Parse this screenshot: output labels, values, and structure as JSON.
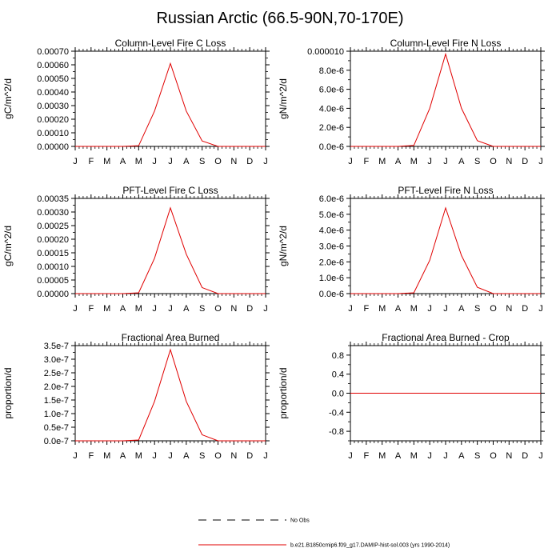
{
  "page": {
    "title": "Russian Arctic (66.5-90N,70-170E)"
  },
  "colors": {
    "model_line": "#e00000",
    "obs_line": "#000000",
    "axis": "#000000"
  },
  "legend": {
    "obs_label": "No Obs",
    "model_label": "b.e21.B1850cmip6.f09_g17.DAMIP-hist-sol.003 (yrs 1990-2014)"
  },
  "chart_data": [
    {
      "type": "line",
      "title": "Column-Level Fire C Loss",
      "ylabel": "gC/m^2/d",
      "x": [
        "J",
        "F",
        "M",
        "A",
        "M",
        "J",
        "J",
        "A",
        "S",
        "O",
        "N",
        "D",
        "J"
      ],
      "ylim": [
        0,
        0.0007
      ],
      "yticks": [
        0,
        0.0001,
        0.0002,
        0.0003,
        0.0004,
        0.0005,
        0.0006,
        0.0007
      ],
      "yticklabels": [
        "0.00000",
        "0.00010",
        "0.00020",
        "0.00030",
        "0.00040",
        "0.00050",
        "0.00060",
        "0.00070"
      ],
      "minor_y": 5e-05,
      "series": [
        {
          "values": [
            0,
            0,
            0,
            0,
            5e-06,
            0.00026,
            0.00061,
            0.00026,
            4e-05,
            0,
            0,
            0,
            0
          ]
        }
      ]
    },
    {
      "type": "line",
      "title": "Column-Level Fire N Loss",
      "ylabel": "gN/m^2/d",
      "x": [
        "J",
        "F",
        "M",
        "A",
        "M",
        "J",
        "J",
        "A",
        "S",
        "O",
        "N",
        "D",
        "J"
      ],
      "ylim": [
        0,
        1e-05
      ],
      "yticks": [
        0,
        2e-06,
        4e-06,
        6e-06,
        8e-06,
        1e-05
      ],
      "yticklabels": [
        "0.0e-6",
        "2.0e-6",
        "4.0e-6",
        "6.0e-6",
        "8.0e-6",
        "0.000010"
      ],
      "minor_y": 1e-06,
      "series": [
        {
          "values": [
            0,
            0,
            0,
            0,
            1e-07,
            4e-06,
            9.7e-06,
            4e-06,
            6e-07,
            0,
            0,
            0,
            0
          ]
        }
      ]
    },
    {
      "type": "line",
      "title": "PFT-Level Fire C Loss",
      "ylabel": "gC/m^2/d",
      "x": [
        "J",
        "F",
        "M",
        "A",
        "M",
        "J",
        "J",
        "A",
        "S",
        "O",
        "N",
        "D",
        "J"
      ],
      "ylim": [
        0,
        0.00035
      ],
      "yticks": [
        0,
        5e-05,
        0.0001,
        0.00015,
        0.0002,
        0.00025,
        0.0003,
        0.00035
      ],
      "yticklabels": [
        "0.00000",
        "0.00005",
        "0.00010",
        "0.00015",
        "0.00020",
        "0.00025",
        "0.00030",
        "0.00035"
      ],
      "minor_y": 2.5e-05,
      "series": [
        {
          "values": [
            0,
            0,
            0,
            0,
            3e-06,
            0.00013,
            0.000315,
            0.000145,
            2.2e-05,
            0,
            0,
            0,
            0
          ]
        }
      ]
    },
    {
      "type": "line",
      "title": "PFT-Level Fire N Loss",
      "ylabel": "gN/m^2/d",
      "x": [
        "J",
        "F",
        "M",
        "A",
        "M",
        "J",
        "J",
        "A",
        "S",
        "O",
        "N",
        "D",
        "J"
      ],
      "ylim": [
        0,
        6e-06
      ],
      "yticks": [
        0,
        1e-06,
        2e-06,
        3e-06,
        4e-06,
        5e-06,
        6e-06
      ],
      "yticklabels": [
        "0.0e-6",
        "1.0e-6",
        "2.0e-6",
        "3.0e-6",
        "4.0e-6",
        "5.0e-6",
        "6.0e-6"
      ],
      "minor_y": 5e-07,
      "series": [
        {
          "values": [
            0,
            0,
            0,
            0,
            5e-08,
            2.1e-06,
            5.4e-06,
            2.4e-06,
            4e-07,
            0,
            0,
            0,
            0
          ]
        }
      ]
    },
    {
      "type": "line",
      "title": "Fractional Area Burned",
      "ylabel": "proportion/d",
      "x": [
        "J",
        "F",
        "M",
        "A",
        "M",
        "J",
        "J",
        "A",
        "S",
        "O",
        "N",
        "D",
        "J"
      ],
      "ylim": [
        0,
        3.5e-07
      ],
      "yticks": [
        0,
        5e-08,
        1e-07,
        1.5e-07,
        2e-07,
        2.5e-07,
        3e-07,
        3.5e-07
      ],
      "yticklabels": [
        "0.0e-7",
        "0.5e-7",
        "1.0e-7",
        "1.5e-7",
        "2.0e-7",
        "2.5e-7",
        "3.0e-7",
        "3.5e-7"
      ],
      "minor_y": 2.5e-08,
      "series": [
        {
          "values": [
            0,
            0,
            0,
            0,
            3e-09,
            1.45e-07,
            3.35e-07,
            1.45e-07,
            2.2e-08,
            0,
            0,
            0,
            0
          ]
        }
      ]
    },
    {
      "type": "line",
      "title": "Fractional Area Burned - Crop",
      "ylabel": "proportion/d",
      "x": [
        "J",
        "F",
        "M",
        "A",
        "M",
        "J",
        "J",
        "A",
        "S",
        "O",
        "N",
        "D",
        "J"
      ],
      "ylim": [
        -1,
        1
      ],
      "yticks": [
        -0.8,
        -0.4,
        0,
        0.4,
        0.8
      ],
      "yticklabels": [
        "-0.8",
        "-0.4",
        "0.0",
        "0.4",
        "0.8"
      ],
      "minor_y": 0.2,
      "series": [
        {
          "values": [
            0,
            0,
            0,
            0,
            0,
            0,
            0,
            0,
            0,
            0,
            0,
            0,
            0
          ]
        }
      ]
    }
  ]
}
